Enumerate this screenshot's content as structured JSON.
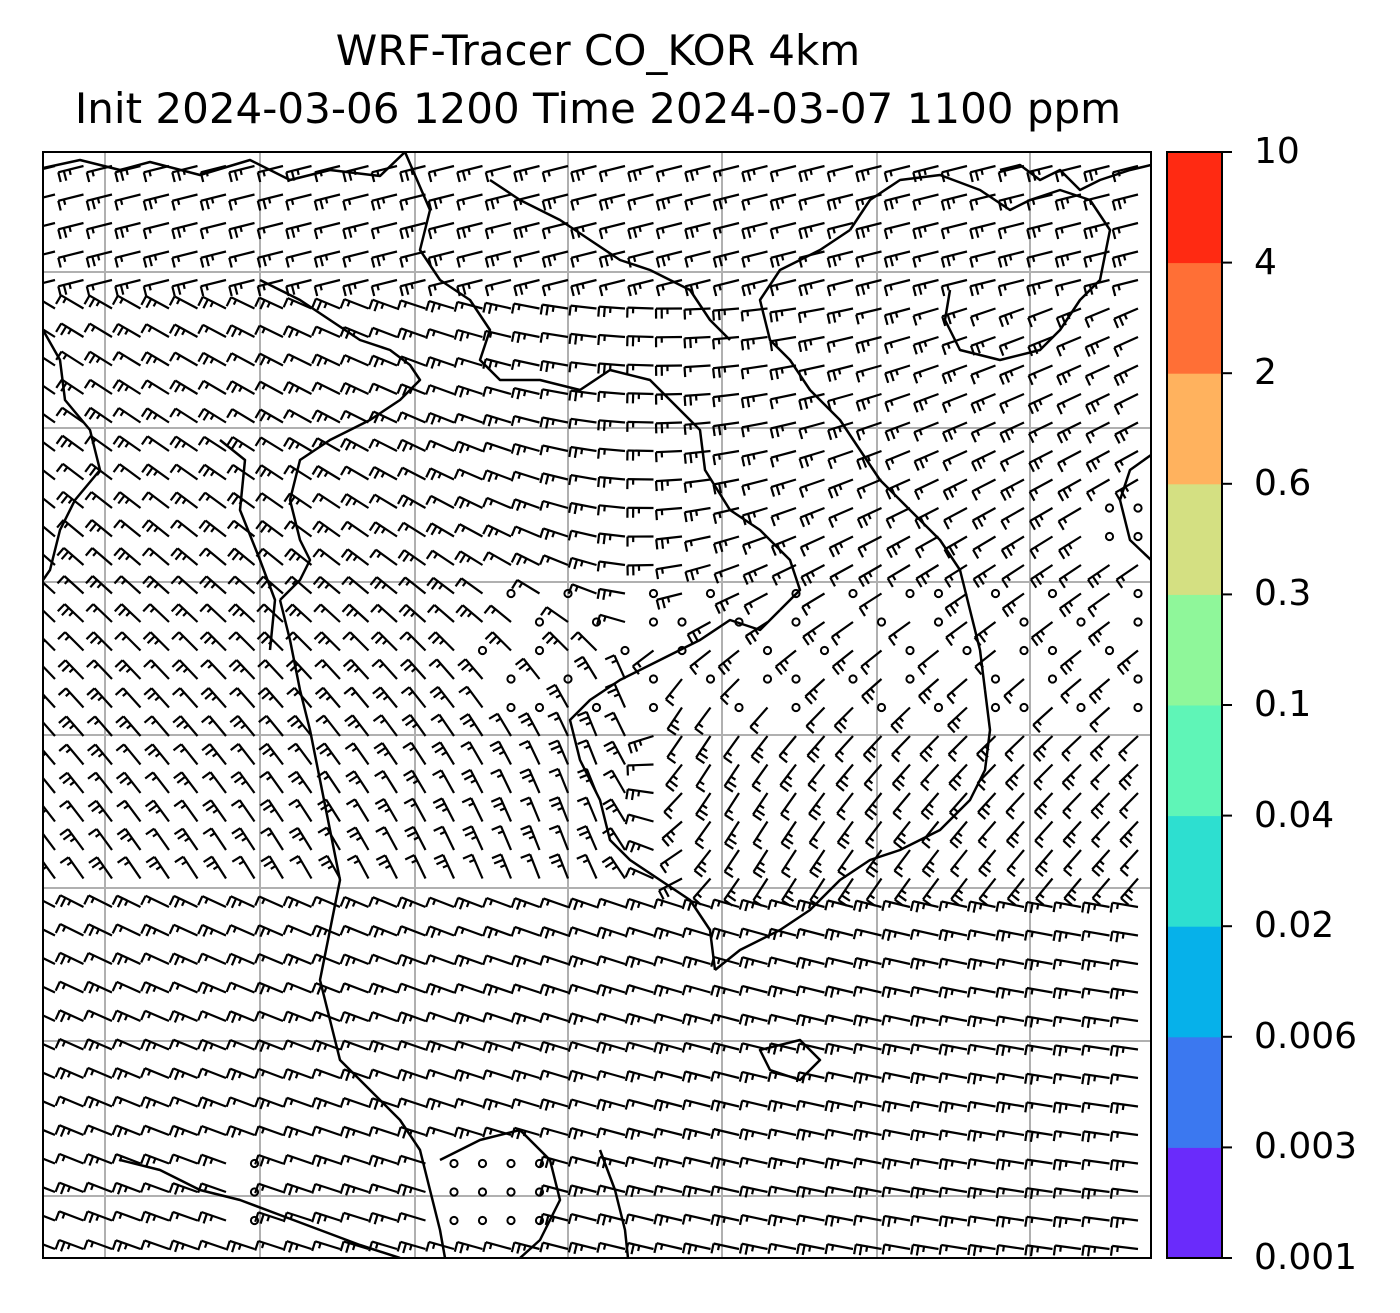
{
  "title": {
    "line1": "WRF-Tracer CO_KOR 4km",
    "line2": "Init 2024-03-06 1200 Time 2024-03-07 1100 ppm"
  },
  "colorbar": {
    "levels": [
      "0.001",
      "0.003",
      "0.006",
      "0.02",
      "0.04",
      "0.1",
      "0.3",
      "0.6",
      "2",
      "4",
      "10"
    ],
    "colors": [
      "#6a2bfb",
      "#3b78f0",
      "#06b1ea",
      "#2ddfd0",
      "#5ff5b7",
      "#8ff79a",
      "#d4e082",
      "#ffb25e",
      "#ff6f36",
      "#ff2a12"
    ]
  },
  "map": {
    "grid": "on",
    "gridline_color": "#b0b0b0",
    "wind_barbs": "black",
    "coastlines": "black"
  }
}
